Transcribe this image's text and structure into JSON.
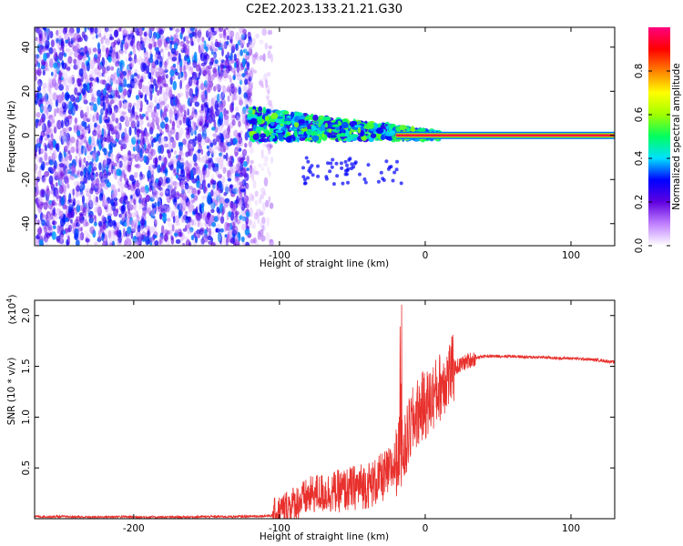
{
  "title": "C2E2.2023.133.21.21.G30",
  "chart_data": [
    {
      "type": "heatmap",
      "xlabel": "Height of straight line (km)",
      "ylabel": "Frequency (Hz)",
      "xlim": [
        -268,
        130
      ],
      "ylim": [
        -50,
        49
      ],
      "x_ticks": [
        -200,
        -100,
        0,
        100
      ],
      "x_tick_labels": [
        "-200",
        "-100",
        "0",
        "100"
      ],
      "y_ticks": [
        -40,
        -20,
        0,
        20,
        40
      ],
      "y_tick_labels": [
        "-40",
        "-20",
        "0",
        "20",
        "40"
      ],
      "colorbar": {
        "label": "Normalized spectral amplitude",
        "range": [
          0,
          1
        ],
        "ticks": [
          0.0,
          0.2,
          0.4,
          0.6,
          0.8
        ],
        "tick_labels": [
          "0.0",
          "0.2",
          "0.4",
          "0.6",
          "0.8"
        ],
        "colors": [
          "#ffffff",
          "#c080ff",
          "#6000e0",
          "#0000ff",
          "#00e0ff",
          "#00ff60",
          "#a0ff00",
          "#ffff00",
          "#ff8000",
          "#ff0000",
          "#ff0080"
        ]
      },
      "regions": [
        {
          "x": [
            -268,
            -120
          ],
          "freq": [
            -50,
            49
          ],
          "amplitude": 0.15,
          "pattern": "noise"
        },
        {
          "x": [
            -120,
            -105
          ],
          "freq": [
            -50,
            49
          ],
          "amplitude": 0.05,
          "pattern": "sparse noise"
        },
        {
          "x": [
            -120,
            10
          ],
          "freq": [
            -5,
            15
          ],
          "amplitude": 0.45,
          "pattern": "band centered near 5 Hz drifting to 0 Hz"
        },
        {
          "x": [
            -20,
            130
          ],
          "freq": [
            -1,
            1
          ],
          "amplitude": 0.95,
          "pattern": "steady line at 0 Hz"
        }
      ],
      "grid": false
    },
    {
      "type": "line",
      "xlabel": "Height of straight line (km)",
      "ylabel": "SNR (10 * v/v)",
      "y_multiplier_label": "(x10",
      "y_multiplier_exp": "4",
      "y_multiplier_close": ")",
      "xlim": [
        -268,
        130
      ],
      "ylim": [
        0,
        2.15
      ],
      "x_ticks": [
        -200,
        -100,
        0,
        100
      ],
      "x_tick_labels": [
        "-200",
        "-100",
        "0",
        "100"
      ],
      "y_ticks": [
        0.5,
        1.0,
        1.5,
        2.0
      ],
      "y_tick_labels": [
        "0.5",
        "1.0",
        "1.5",
        "2.0"
      ],
      "color": "#e8302c",
      "series": [
        {
          "x": [
            -268,
            -250,
            -230,
            -210,
            -190,
            -170,
            -150,
            -130,
            -115,
            -105,
            -100,
            -95,
            -90,
            -85,
            -80,
            -75,
            -70,
            -65,
            -60,
            -55,
            -50,
            -45,
            -40,
            -35,
            -30,
            -25,
            -20,
            -17,
            -15,
            -12,
            -10,
            -7,
            -5,
            -2,
            0,
            3,
            5,
            8,
            10,
            12,
            15,
            18,
            20,
            25,
            30,
            35,
            40,
            50,
            60,
            70,
            80,
            90,
            100,
            110,
            120,
            130
          ],
          "y": [
            0.02,
            0.02,
            0.015,
            0.02,
            0.015,
            0.015,
            0.02,
            0.02,
            0.025,
            0.03,
            0.07,
            0.12,
            0.15,
            0.18,
            0.22,
            0.25,
            0.25,
            0.26,
            0.27,
            0.28,
            0.3,
            0.32,
            0.33,
            0.35,
            0.4,
            0.45,
            0.55,
            0.7,
            0.6,
            0.8,
            0.9,
            1.0,
            1.05,
            1.1,
            1.12,
            1.15,
            1.2,
            1.25,
            1.3,
            1.35,
            1.4,
            1.45,
            1.48,
            1.52,
            1.56,
            1.58,
            1.6,
            1.6,
            1.6,
            1.59,
            1.59,
            1.58,
            1.58,
            1.57,
            1.56,
            1.54
          ]
        }
      ],
      "grid": false
    }
  ]
}
